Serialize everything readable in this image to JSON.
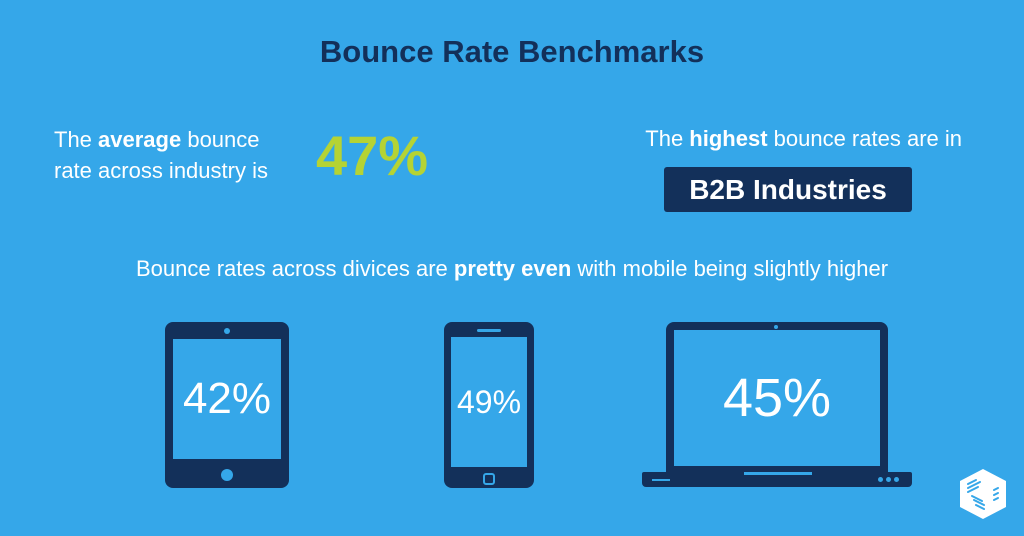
{
  "title": "Bounce Rate Benchmarks",
  "average": {
    "pre": "The ",
    "bold": "average",
    "post1": " bounce",
    "line2": "rate across industry is",
    "value": "47%"
  },
  "highest": {
    "pre": "The ",
    "bold": "highest",
    "post": " bounce rates are in",
    "badge": "B2B Industries"
  },
  "subtitle": {
    "pre": "Bounce rates across divices are ",
    "bold": "pretty even",
    "post": " with mobile being slightly higher"
  },
  "devices": [
    {
      "type": "tablet",
      "value": "42%"
    },
    {
      "type": "phone",
      "value": "49%"
    },
    {
      "type": "laptop",
      "value": "45%"
    }
  ],
  "colors": {
    "background": "#35a7e9",
    "navy": "#13305a",
    "accent": "#b5d334"
  },
  "logo": "cube-logo"
}
